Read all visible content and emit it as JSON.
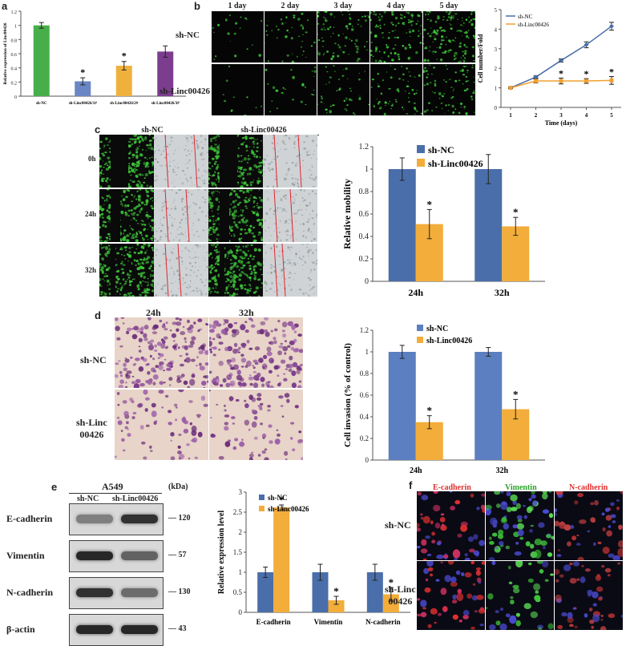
{
  "panel_labels": {
    "a": "a",
    "b": "b",
    "c": "c",
    "d": "d",
    "e": "e",
    "f": "f"
  },
  "colors": {
    "green": "#47ae4a",
    "blue": "#6b86c4",
    "orange": "#f0b13c",
    "purple": "#7d3d8e",
    "sh_nc_bar": "#4a6ea9",
    "sh_linc_bar": "#f2ad3a",
    "fluor_green": "#3ec43a",
    "stain_purple": "#7a3a8a"
  },
  "panel_b": {
    "day_headers": [
      "1 day",
      "2 day",
      "3 day",
      "4 day",
      "5 day"
    ],
    "row_labels": [
      "sh-NC",
      "sh-Linc00426"
    ]
  },
  "panel_c": {
    "col_headers": [
      "sh-NC",
      "sh-Linc00426"
    ],
    "row_labels": [
      "0h",
      "24h",
      "32h"
    ]
  },
  "panel_d": {
    "col_headers": [
      "24h",
      "32h"
    ],
    "row_labels": [
      "sh-NC",
      "sh-Linc\n00426"
    ]
  },
  "panel_e": {
    "cell_line": "A549",
    "kda": "(kDa)",
    "col_headers": [
      "sh-NC",
      "sh-Linc00426"
    ],
    "proteins": [
      {
        "name": "E-cadherin",
        "kda": "120"
      },
      {
        "name": "Vimentin",
        "kda": "57"
      },
      {
        "name": "N-cadherin",
        "kda": "130"
      },
      {
        "name": "β-actin",
        "kda": "43"
      }
    ]
  },
  "panel_f": {
    "col_headers": [
      "E-cadherin",
      "Vimentin",
      "N-cadherin"
    ],
    "row_labels": [
      "sh-NC",
      "sh-Linc\n00426"
    ]
  },
  "chart_data": [
    {
      "id": "a",
      "type": "bar",
      "categories": [
        "sh-NC",
        "sh-Linc00426/1#",
        "sh-Linc00426/2#",
        "sh-Linc00426/3#"
      ],
      "values": [
        1.0,
        0.21,
        0.43,
        0.63
      ],
      "errors": [
        0.04,
        0.05,
        0.06,
        0.08
      ],
      "colors": [
        "#47ae4a",
        "#6b86c4",
        "#f0b13c",
        "#7d3d8e"
      ],
      "significant": [
        false,
        true,
        true,
        false
      ],
      "ylabel": "Relative expression of Linc00426",
      "ylim": [
        0,
        1.2
      ],
      "yticks": [
        "0",
        "0.2",
        "0.4",
        "0.6",
        "0.8",
        "1",
        "1.2"
      ]
    },
    {
      "id": "b",
      "type": "line",
      "x": [
        1,
        2,
        3,
        4,
        5
      ],
      "series": [
        {
          "name": "sh-NC",
          "values": [
            1.0,
            1.55,
            2.4,
            3.2,
            4.15
          ],
          "errors": [
            0.03,
            0.06,
            0.08,
            0.15,
            0.2
          ],
          "color": "#4a6ea9"
        },
        {
          "name": "sh-Linc00426",
          "values": [
            1.0,
            1.35,
            1.35,
            1.35,
            1.38
          ],
          "errors": [
            0.03,
            0.1,
            0.15,
            0.12,
            0.2
          ],
          "color": "#f0a030"
        }
      ],
      "significant_x": [
        3,
        4,
        5
      ],
      "xlabel": "Time (days)",
      "ylabel": "Cell number/Fold",
      "ylim": [
        0,
        5
      ],
      "yticks": [
        "0",
        "1",
        "2",
        "3",
        "4",
        "5"
      ],
      "xticks": [
        "1",
        "2",
        "3",
        "4",
        "5"
      ],
      "legend": "top-left"
    },
    {
      "id": "c",
      "type": "bar",
      "categories": [
        "24h",
        "32h"
      ],
      "series": [
        {
          "name": "sh-NC",
          "values": [
            1.0,
            1.0
          ],
          "errors": [
            0.1,
            0.13
          ],
          "color": "#4a6ea9"
        },
        {
          "name": "sh-Linc00426",
          "values": [
            0.51,
            0.49
          ],
          "errors": [
            0.13,
            0.08
          ],
          "color": "#f2ad3a"
        }
      ],
      "ylabel": "Relative mobility",
      "ylim": [
        0,
        1.2
      ],
      "yticks": [
        "0",
        "0.2",
        "0.4",
        "0.6",
        "0.8",
        "1",
        "1.2"
      ],
      "legend": "top-left"
    },
    {
      "id": "d",
      "type": "bar",
      "categories": [
        "24h",
        "32h"
      ],
      "series": [
        {
          "name": "sh-NC",
          "values": [
            1.0,
            1.0
          ],
          "errors": [
            0.06,
            0.04
          ],
          "color": "#5b7fc0"
        },
        {
          "name": "sh-Linc00426",
          "values": [
            0.35,
            0.47
          ],
          "errors": [
            0.06,
            0.09
          ],
          "color": "#f2ad3a"
        }
      ],
      "ylabel": "Cell invasion (% of control)",
      "ylim": [
        0,
        1.2
      ],
      "yticks": [
        "0",
        "0.2",
        "0.4",
        "0.6",
        "0.8",
        "1",
        "1.2"
      ],
      "legend": "top-left"
    },
    {
      "id": "e",
      "type": "bar",
      "categories": [
        "E-cadherin",
        "Vimentin",
        "N-cadherin"
      ],
      "series": [
        {
          "name": "sh-NC",
          "values": [
            1.0,
            1.0,
            1.0
          ],
          "errors": [
            0.13,
            0.2,
            0.2
          ],
          "color": "#4a6ea9"
        },
        {
          "name": "sh-Linc00426",
          "values": [
            2.62,
            0.3,
            0.45
          ],
          "errors": [
            0.06,
            0.1,
            0.17
          ],
          "color": "#f2ad3a"
        }
      ],
      "ylabel": "Relative expression level",
      "ylim": [
        0,
        3
      ],
      "yticks": [
        "0",
        "0.5",
        "1",
        "1.5",
        "2",
        "2.5",
        "3"
      ],
      "legend": "top-left"
    }
  ]
}
